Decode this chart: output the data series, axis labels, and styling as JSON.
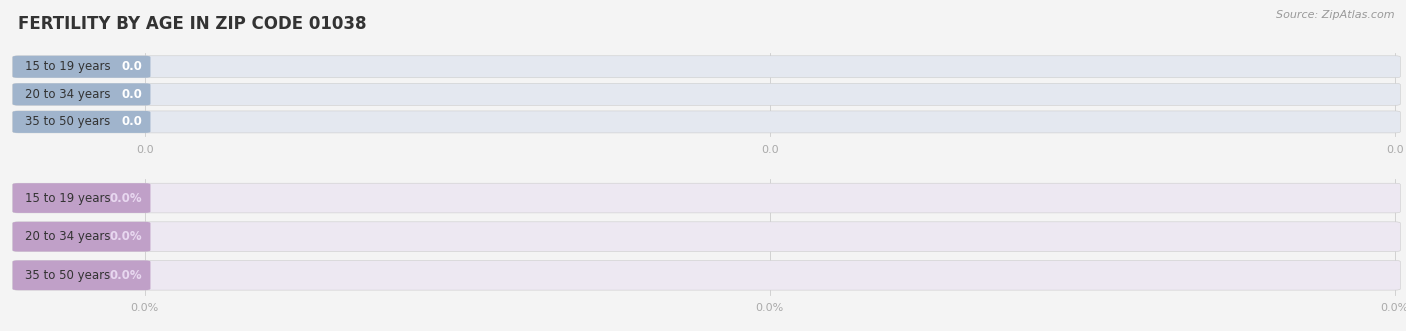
{
  "title": "FERTILITY BY AGE IN ZIP CODE 01038",
  "source": "Source: ZipAtlas.com",
  "background_color": "#f4f4f4",
  "sections": [
    {
      "categories": [
        "15 to 19 years",
        "20 to 34 years",
        "35 to 50 years"
      ],
      "values": [
        0.0,
        0.0,
        0.0
      ],
      "bar_color": "#a0b4cc",
      "bar_bg_color": "#e4e8f0",
      "value_labels": [
        "0.0",
        "0.0",
        "0.0"
      ],
      "tick_labels": [
        "0.0",
        "0.0",
        "0.0"
      ],
      "value_text_color": "#ffffff"
    },
    {
      "categories": [
        "15 to 19 years",
        "20 to 34 years",
        "35 to 50 years"
      ],
      "values": [
        0.0,
        0.0,
        0.0
      ],
      "bar_color": "#c0a0c8",
      "bar_bg_color": "#ede8f2",
      "value_labels": [
        "0.0%",
        "0.0%",
        "0.0%"
      ],
      "tick_labels": [
        "0.0%",
        "0.0%",
        "0.0%"
      ],
      "value_text_color": "#e8d8f0"
    }
  ],
  "title_fontsize": 12,
  "label_fontsize": 8.5,
  "tick_fontsize": 8,
  "source_fontsize": 8
}
